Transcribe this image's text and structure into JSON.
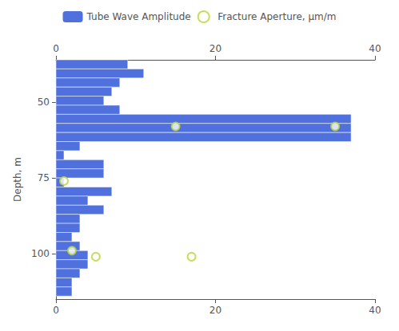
{
  "chart_data": {
    "type": "bar",
    "orientation": "horizontal",
    "ylabel": "Depth, m",
    "ylim": [
      115,
      36
    ],
    "yticks": [
      50,
      75,
      100
    ],
    "xlim": [
      0,
      40
    ],
    "xticks": [
      0,
      20,
      40
    ],
    "grid": false,
    "legend": "top",
    "series": [
      {
        "name": "Tube Wave Amplitude",
        "type": "bar",
        "depth_top": [
          36,
          39,
          42,
          45,
          48,
          51,
          54,
          57,
          60,
          63,
          66,
          69,
          72,
          75,
          78,
          81,
          84,
          87,
          90,
          93,
          96,
          99,
          102,
          105,
          108,
          111
        ],
        "depth_bot": [
          39,
          42,
          45,
          48,
          51,
          54,
          57,
          60,
          63,
          66,
          69,
          72,
          75,
          78,
          81,
          84,
          87,
          90,
          93,
          96,
          99,
          102,
          105,
          108,
          111,
          114
        ],
        "values": [
          9,
          11,
          8,
          7,
          6,
          8,
          37,
          37,
          37,
          3,
          1,
          6,
          6,
          1,
          7,
          4,
          6,
          3,
          3,
          2,
          3,
          4,
          4,
          3,
          2,
          2
        ]
      },
      {
        "name": "Fracture Aperture, μm/m",
        "type": "scatter",
        "marker": "emptyCircle",
        "y": [
          58,
          58,
          76,
          99,
          101,
          101
        ],
        "values": [
          15,
          35,
          1,
          2,
          5,
          17
        ]
      }
    ]
  }
}
